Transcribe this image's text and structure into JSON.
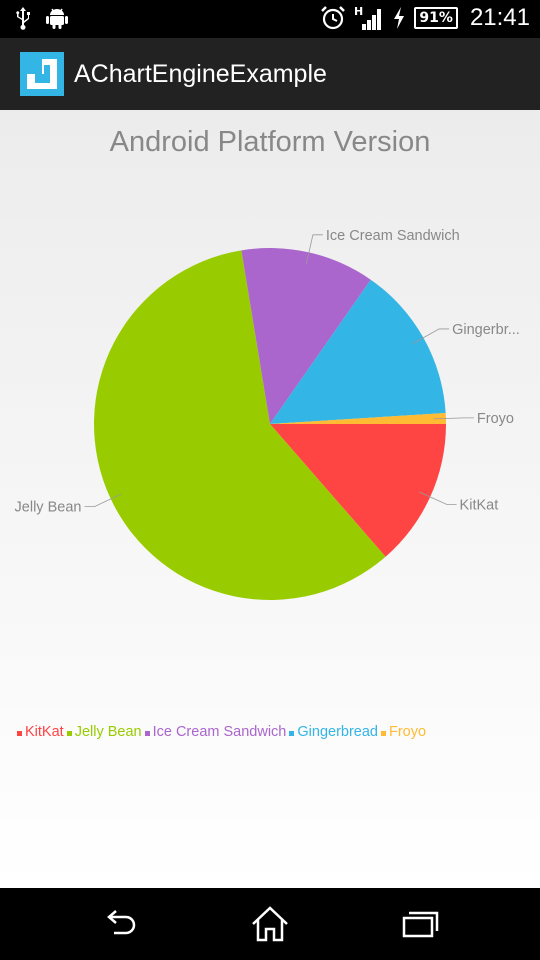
{
  "status_bar": {
    "icons": [
      "usb-icon",
      "android-debug-icon",
      "alarm-icon",
      "signal-h-icon",
      "charging-icon",
      "battery-icon"
    ],
    "network_type": "H",
    "battery": "91%",
    "time": "21:41"
  },
  "action_bar": {
    "title": "AChartEngineExample",
    "icon": "app-logo-icon"
  },
  "chart_data": {
    "type": "pie",
    "title": "Android Platform Version",
    "start_angle_deg": 0,
    "direction": "clockwise",
    "legend_position": "bottom-left",
    "slices": [
      {
        "label": "KitKat",
        "legend_label": "KitKat",
        "value": 13.6,
        "color": "#ff4444"
      },
      {
        "label": "Jelly Bean",
        "legend_label": "Jelly Bean",
        "value": 58.8,
        "color": "#99cc00"
      },
      {
        "label": "Ice Cream Sandwich",
        "legend_label": "Ice Cream Sandwich",
        "value": 12.3,
        "color": "#aa66cc"
      },
      {
        "label": "Gingerbr...",
        "legend_label": "Gingerbread",
        "value": 14.3,
        "color": "#33b5e5"
      },
      {
        "label": "Froyo",
        "legend_label": "Froyo",
        "value": 1.0,
        "color": "#ffbb33"
      }
    ]
  },
  "nav_bar": {
    "back": "back-icon",
    "home": "home-icon",
    "recents": "recent-apps-icon"
  }
}
